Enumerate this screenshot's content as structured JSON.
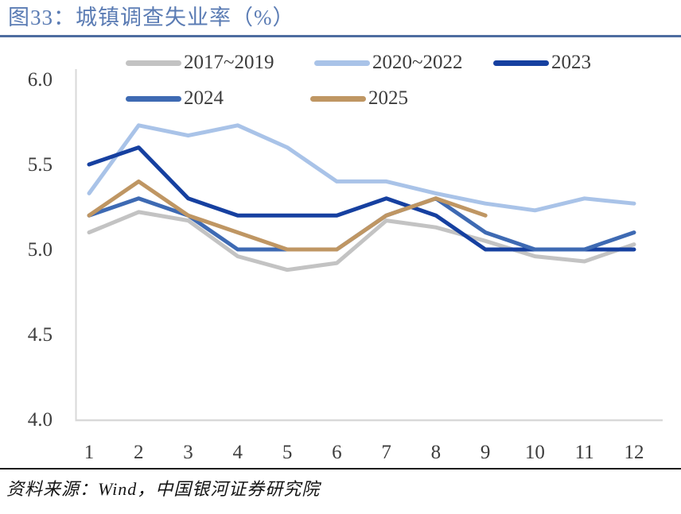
{
  "header": {
    "title": "图33：城镇调查失业率（%）"
  },
  "footer": {
    "source": "资料来源：Wind，中国银河证券研究院"
  },
  "colors": {
    "title_text": "#5b7cb4",
    "title_divider": "#4e6da0",
    "axis_line": "#d9d9d9",
    "tick_text": "#3d3d3d",
    "legend_text": "#3c3c3c",
    "source_divider": "#1c1c1c",
    "source_text": "#141414"
  },
  "chart_data": {
    "type": "line",
    "title": "城镇调查失业率（%）",
    "categories": [
      1,
      2,
      3,
      4,
      5,
      6,
      7,
      8,
      9,
      10,
      11,
      12
    ],
    "yticks": [
      "6.0",
      "5.5",
      "5.0",
      "4.5",
      "4.0"
    ],
    "ylim": [
      4.0,
      6.0
    ],
    "grid": false,
    "legend_position": "top",
    "series": [
      {
        "name": "2017~2019",
        "color": "#c3c3c3",
        "values": [
          5.1,
          5.22,
          5.17,
          4.96,
          4.88,
          4.92,
          5.17,
          5.13,
          5.05,
          4.96,
          4.93,
          5.03
        ]
      },
      {
        "name": "2020~2022",
        "color": "#a9c3e8",
        "values": [
          5.33,
          5.73,
          5.67,
          5.73,
          5.6,
          5.4,
          5.4,
          5.33,
          5.27,
          5.23,
          5.3,
          5.27
        ]
      },
      {
        "name": "2023",
        "color": "#1640a0",
        "values": [
          5.5,
          5.6,
          5.3,
          5.2,
          5.2,
          5.2,
          5.3,
          5.2,
          5.0,
          5.0,
          5.0,
          5.0
        ]
      },
      {
        "name": "2024",
        "color": "#3e6ab3",
        "values": [
          5.2,
          5.3,
          5.2,
          5.0,
          5.0,
          5.0,
          5.2,
          5.3,
          5.1,
          5.0,
          5.0,
          5.1
        ]
      },
      {
        "name": "2025",
        "color": "#bf9663",
        "values": [
          5.2,
          5.4,
          5.2,
          5.1,
          5.0,
          5.0,
          5.2,
          5.3,
          5.2
        ]
      }
    ]
  }
}
